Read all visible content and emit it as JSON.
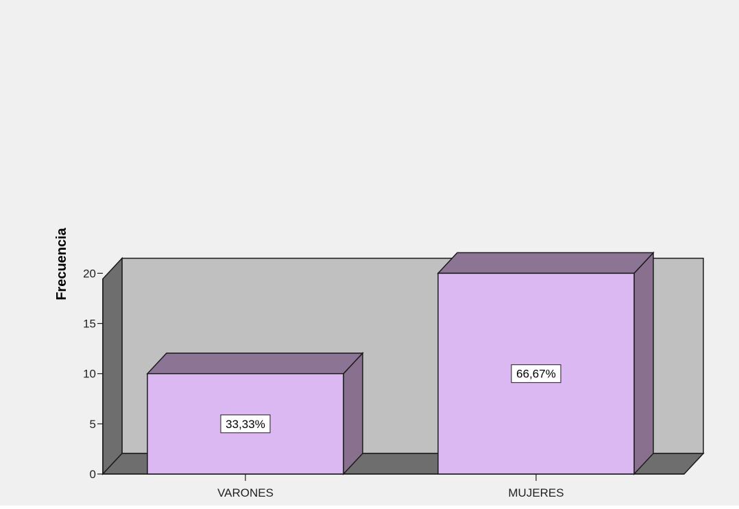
{
  "chart_data": {
    "type": "bar",
    "title": "",
    "xlabel": "",
    "ylabel": "Frecuencia",
    "categories": [
      "VARONES",
      "MUJERES"
    ],
    "values": [
      10,
      20
    ],
    "data_labels": [
      "33,33%",
      "66,67%"
    ],
    "yticks": [
      0,
      5,
      10,
      15,
      20
    ],
    "ylim": [
      0,
      21.5
    ],
    "grid": false,
    "legend": "none",
    "style": "3d-bars"
  },
  "colors": {
    "background": "#f0f0f0",
    "back_wall": "#c0c0c0",
    "side_wall": "#6e6e6e",
    "floor": "#6e6e6e",
    "bar_front": "#dcb8f2",
    "bar_top": "#8c7494",
    "bar_side": "#88708e",
    "outline": "#1a1a1a",
    "label_box": "#ffffff"
  }
}
